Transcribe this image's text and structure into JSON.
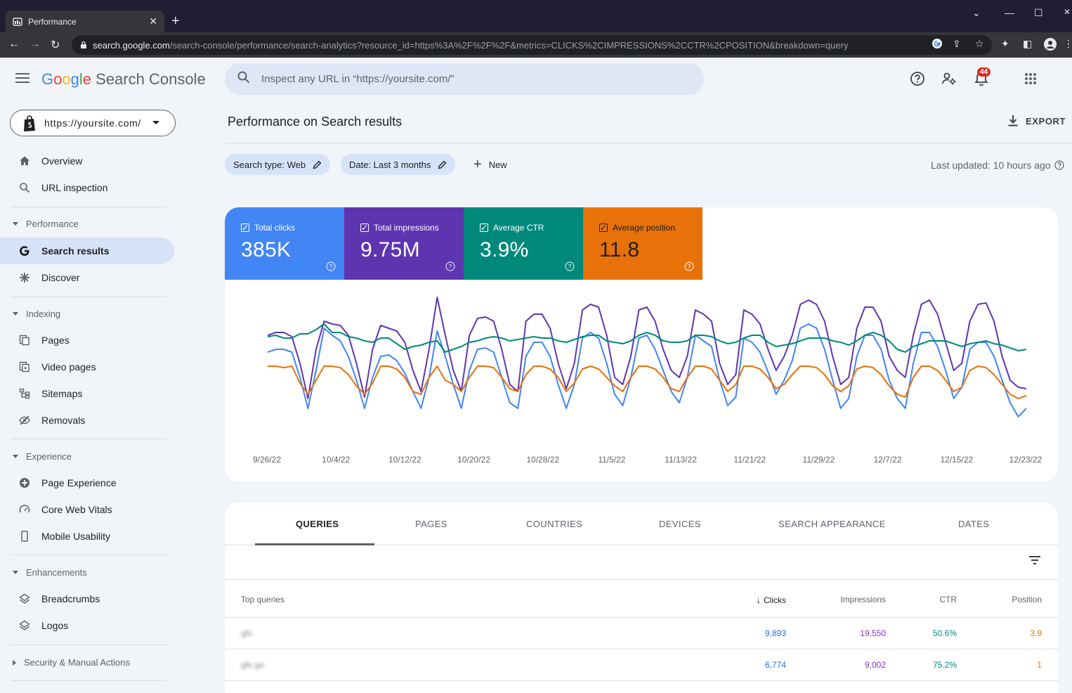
{
  "browser": {
    "tab_title": "Performance",
    "url_host": "search.google.com",
    "url_path": "/search-console/performance/search-analytics?resource_id=https%3A%2F%2F%2F&metrics=CLICKS%2CIMPRESSIONS%2CCTR%2CPOSITION&breakdown=query"
  },
  "header": {
    "brand_google": [
      "G",
      "o",
      "o",
      "g",
      "l",
      "e"
    ],
    "brand_product": "Search Console",
    "search_placeholder": "Inspect any URL in “https://yoursite.com/”",
    "notification_count": "44",
    "icons": [
      "menu-icon",
      "search-icon",
      "help-icon",
      "manage-users-icon",
      "notifications-icon",
      "apps-grid-icon"
    ]
  },
  "sidebar": {
    "property": "https://yoursite.com/",
    "items": {
      "overview": "Overview",
      "url_inspection": "URL inspection",
      "performance_section": "Performance",
      "search_results": "Search results",
      "discover": "Discover",
      "indexing_section": "Indexing",
      "pages": "Pages",
      "video_pages": "Video pages",
      "sitemaps": "Sitemaps",
      "removals": "Removals",
      "experience_section": "Experience",
      "page_experience": "Page Experience",
      "core_web_vitals": "Core Web Vitals",
      "mobile_usability": "Mobile Usability",
      "enhancements_section": "Enhancements",
      "breadcrumbs": "Breadcrumbs",
      "logos": "Logos",
      "security_section": "Security & Manual Actions"
    }
  },
  "main": {
    "title": "Performance on Search results",
    "export_label": "EXPORT",
    "filters": {
      "search_type": "Search type: Web",
      "date": "Date: Last 3 months",
      "new_label": "New"
    },
    "last_updated": "Last updated: 10 hours ago"
  },
  "metrics": [
    {
      "label": "Total clicks",
      "value": "385K",
      "color": "#4285f4"
    },
    {
      "label": "Total impressions",
      "value": "9.75M",
      "color": "#5e35b1"
    },
    {
      "label": "Average CTR",
      "value": "3.9%",
      "color": "#00897b"
    },
    {
      "label": "Average position",
      "value": "11.8",
      "color": "#e8710a"
    }
  ],
  "chart_data": {
    "type": "line",
    "title": "",
    "xlabel": "",
    "ylabel": "",
    "x_tick_labels": [
      "9/26/22",
      "10/4/22",
      "10/12/22",
      "10/20/22",
      "10/28/22",
      "11/5/22",
      "11/13/22",
      "11/21/22",
      "11/29/22",
      "12/7/22",
      "12/15/22",
      "12/23/22"
    ],
    "y_scale": "independent normalized per series (no y-axis printed)",
    "grid": false,
    "series": [
      {
        "key": "impressions",
        "color": "#5e35b1",
        "values": [
          0.7,
          0.72,
          0.72,
          0.69,
          0.5,
          0.25,
          0.6,
          0.8,
          0.78,
          0.77,
          0.7,
          0.5,
          0.26,
          0.6,
          0.77,
          0.75,
          0.73,
          0.65,
          0.45,
          0.3,
          0.6,
          0.97,
          0.7,
          0.45,
          0.3,
          0.7,
          0.82,
          0.83,
          0.8,
          0.6,
          0.35,
          0.3,
          0.8,
          0.85,
          0.85,
          0.75,
          0.5,
          0.32,
          0.5,
          0.88,
          0.92,
          0.9,
          0.7,
          0.4,
          0.35,
          0.55,
          0.88,
          0.9,
          0.8,
          0.6,
          0.45,
          0.4,
          0.55,
          0.88,
          0.85,
          0.8,
          0.5,
          0.35,
          0.42,
          0.88,
          0.85,
          0.78,
          0.6,
          0.45,
          0.55,
          0.7,
          0.92,
          0.95,
          0.92,
          0.8,
          0.55,
          0.35,
          0.4,
          0.75,
          0.9,
          0.9,
          0.8,
          0.55,
          0.45,
          0.4,
          0.7,
          0.92,
          0.95,
          0.85,
          0.65,
          0.45,
          0.5,
          0.8,
          0.92,
          0.93,
          0.8,
          0.55,
          0.38,
          0.33,
          0.32
        ]
      },
      {
        "key": "clicks",
        "color": "#4285f4",
        "values": [
          0.58,
          0.6,
          0.6,
          0.58,
          0.4,
          0.18,
          0.45,
          0.75,
          0.7,
          0.66,
          0.55,
          0.38,
          0.18,
          0.4,
          0.55,
          0.56,
          0.52,
          0.43,
          0.3,
          0.18,
          0.4,
          0.73,
          0.55,
          0.35,
          0.18,
          0.45,
          0.6,
          0.61,
          0.58,
          0.4,
          0.22,
          0.18,
          0.55,
          0.65,
          0.65,
          0.55,
          0.35,
          0.18,
          0.35,
          0.68,
          0.72,
          0.68,
          0.5,
          0.28,
          0.2,
          0.4,
          0.68,
          0.7,
          0.6,
          0.45,
          0.3,
          0.22,
          0.4,
          0.7,
          0.66,
          0.62,
          0.38,
          0.2,
          0.26,
          0.68,
          0.65,
          0.58,
          0.44,
          0.28,
          0.38,
          0.52,
          0.75,
          0.78,
          0.75,
          0.6,
          0.38,
          0.18,
          0.25,
          0.55,
          0.7,
          0.7,
          0.6,
          0.38,
          0.25,
          0.18,
          0.5,
          0.72,
          0.72,
          0.62,
          0.45,
          0.25,
          0.33,
          0.6,
          0.65,
          0.65,
          0.55,
          0.38,
          0.22,
          0.12,
          0.18
        ]
      },
      {
        "key": "ctr",
        "color": "#00897b",
        "values": [
          0.69,
          0.7,
          0.68,
          0.68,
          0.71,
          0.71,
          0.74,
          0.78,
          0.72,
          0.72,
          0.69,
          0.68,
          0.66,
          0.65,
          0.68,
          0.68,
          0.64,
          0.6,
          0.62,
          0.63,
          0.65,
          0.66,
          0.58,
          0.6,
          0.62,
          0.65,
          0.66,
          0.68,
          0.69,
          0.68,
          0.66,
          0.67,
          0.68,
          0.69,
          0.68,
          0.68,
          0.66,
          0.65,
          0.67,
          0.69,
          0.7,
          0.7,
          0.66,
          0.65,
          0.64,
          0.66,
          0.7,
          0.72,
          0.7,
          0.66,
          0.65,
          0.65,
          0.66,
          0.7,
          0.7,
          0.69,
          0.66,
          0.64,
          0.65,
          0.68,
          0.7,
          0.7,
          0.65,
          0.62,
          0.63,
          0.64,
          0.66,
          0.68,
          0.68,
          0.68,
          0.66,
          0.65,
          0.63,
          0.66,
          0.7,
          0.72,
          0.7,
          0.66,
          0.6,
          0.58,
          0.62,
          0.64,
          0.66,
          0.66,
          0.66,
          0.64,
          0.62,
          0.64,
          0.65,
          0.66,
          0.64,
          0.63,
          0.61,
          0.59,
          0.6
        ]
      },
      {
        "key": "position",
        "color": "#e8710a",
        "values": [
          0.48,
          0.48,
          0.47,
          0.48,
          0.36,
          0.28,
          0.38,
          0.48,
          0.48,
          0.47,
          0.42,
          0.34,
          0.28,
          0.36,
          0.48,
          0.48,
          0.46,
          0.4,
          0.3,
          0.28,
          0.4,
          0.48,
          0.38,
          0.35,
          0.3,
          0.4,
          0.48,
          0.48,
          0.47,
          0.4,
          0.32,
          0.3,
          0.42,
          0.48,
          0.48,
          0.46,
          0.4,
          0.3,
          0.36,
          0.46,
          0.48,
          0.46,
          0.4,
          0.34,
          0.3,
          0.4,
          0.48,
          0.48,
          0.46,
          0.4,
          0.32,
          0.3,
          0.4,
          0.48,
          0.48,
          0.46,
          0.38,
          0.3,
          0.35,
          0.48,
          0.48,
          0.46,
          0.4,
          0.32,
          0.35,
          0.42,
          0.48,
          0.48,
          0.47,
          0.42,
          0.34,
          0.3,
          0.34,
          0.46,
          0.48,
          0.47,
          0.42,
          0.34,
          0.28,
          0.26,
          0.4,
          0.48,
          0.48,
          0.45,
          0.38,
          0.3,
          0.33,
          0.45,
          0.48,
          0.47,
          0.42,
          0.35,
          0.28,
          0.25,
          0.27
        ]
      }
    ]
  },
  "table": {
    "tabs": [
      "QUERIES",
      "PAGES",
      "COUNTRIES",
      "DEVICES",
      "SEARCH APPEARANCE",
      "DATES"
    ],
    "active_tab": "QUERIES",
    "columns": {
      "query": "Top queries",
      "clicks": "Clicks",
      "impressions": "Impressions",
      "ctr": "CTR",
      "position": "Position"
    },
    "rows": [
      {
        "query": "gfs",
        "clicks": "9,893",
        "impressions": "19,550",
        "ctr": "50.6%",
        "position": "3.9"
      },
      {
        "query": "gfs go",
        "clicks": "6,774",
        "impressions": "9,002",
        "ctr": "75.2%",
        "position": "1"
      }
    ]
  }
}
